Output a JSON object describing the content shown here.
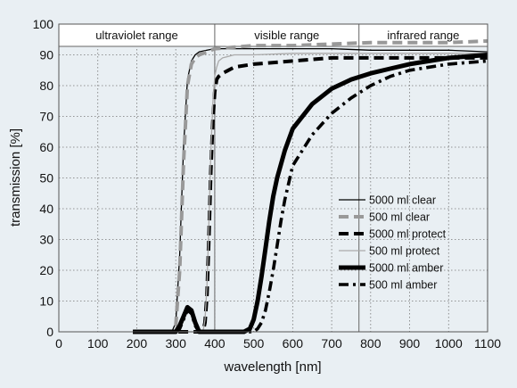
{
  "chart_data": {
    "type": "line",
    "title": "",
    "xlabel": "wavelength [nm]",
    "ylabel": "transmission [%]",
    "xlim": [
      0,
      1100
    ],
    "ylim": [
      0,
      100
    ],
    "x_ticks": [
      "0",
      "100",
      "200",
      "300",
      "400",
      "500",
      "600",
      "700",
      "800",
      "900",
      "1000",
      "1100"
    ],
    "y_ticks": [
      "0",
      "10",
      "20",
      "30",
      "40",
      "50",
      "60",
      "70",
      "80",
      "90",
      "100"
    ],
    "grid": true,
    "legend_position": "bottom-right",
    "range_bands": [
      {
        "label": "ultraviolet range",
        "from": 0,
        "to": 400
      },
      {
        "label": "visible range",
        "from": 400,
        "to": 770
      },
      {
        "label": "infrared range",
        "from": 770,
        "to": 1100
      }
    ],
    "series": [
      {
        "name": "5000 ml clear",
        "style": "thin-solid",
        "color": "#000000",
        "x": [
          190,
          200,
          250,
          290,
          300,
          310,
          320,
          330,
          340,
          350,
          360,
          380,
          400,
          450,
          500,
          600,
          700,
          800,
          900,
          1000,
          1100
        ],
        "y": [
          0,
          0,
          0,
          0,
          3,
          25,
          60,
          82,
          88,
          90,
          91,
          91.5,
          92,
          92,
          92,
          92,
          92,
          91.5,
          91.5,
          91.5,
          91
        ]
      },
      {
        "name": "500 ml clear",
        "style": "thick-dashed",
        "color": "#999999",
        "x": [
          190,
          200,
          250,
          290,
          300,
          310,
          320,
          330,
          340,
          350,
          360,
          380,
          400,
          450,
          500,
          600,
          700,
          800,
          900,
          1000,
          1100
        ],
        "y": [
          0,
          0,
          0,
          0,
          2,
          20,
          55,
          80,
          87,
          89,
          90,
          91,
          92,
          92.5,
          93,
          93,
          93.5,
          94,
          94,
          94,
          94.5
        ]
      },
      {
        "name": "5000 ml protect",
        "style": "thick-dashed",
        "color": "#000000",
        "x": [
          190,
          200,
          300,
          370,
          375,
          380,
          385,
          390,
          395,
          400,
          405,
          410,
          420,
          450,
          500,
          600,
          700,
          800,
          900,
          1000,
          1100
        ],
        "y": [
          0,
          0,
          0,
          0,
          3,
          12,
          30,
          52,
          68,
          78,
          82,
          83,
          84,
          86,
          87,
          88,
          89,
          89,
          89,
          89,
          89
        ]
      },
      {
        "name": "500 ml protect",
        "style": "thin-solid",
        "color": "#aaaaaa",
        "x": [
          190,
          200,
          300,
          370,
          375,
          380,
          385,
          390,
          395,
          400,
          405,
          410,
          420,
          450,
          500,
          600,
          700,
          800,
          900,
          1000,
          1100
        ],
        "y": [
          0,
          0,
          0,
          0,
          4,
          15,
          35,
          58,
          74,
          83,
          86,
          88,
          89,
          90,
          90,
          90.5,
          90.5,
          90.5,
          90.5,
          90.5,
          90.5
        ]
      },
      {
        "name": "5000 ml amber",
        "style": "thick-solid",
        "color": "#000000",
        "x": [
          190,
          250,
          300,
          310,
          320,
          330,
          340,
          350,
          360,
          370,
          400,
          450,
          475,
          490,
          500,
          510,
          520,
          530,
          540,
          550,
          560,
          580,
          600,
          650,
          700,
          750,
          800,
          850,
          900,
          950,
          1000,
          1050,
          1100
        ],
        "y": [
          0,
          0,
          0,
          2,
          5,
          8,
          7,
          3,
          0,
          0,
          0,
          0,
          0,
          1,
          4,
          10,
          18,
          27,
          36,
          44,
          50,
          59,
          66,
          74,
          79,
          82,
          84,
          85.5,
          87,
          88,
          89,
          89.5,
          90
        ]
      },
      {
        "name": "500 ml amber",
        "style": "thick-dashdot",
        "color": "#000000",
        "x": [
          190,
          250,
          300,
          310,
          320,
          330,
          340,
          350,
          360,
          370,
          400,
          450,
          490,
          500,
          510,
          520,
          530,
          540,
          550,
          560,
          570,
          580,
          600,
          650,
          700,
          750,
          800,
          850,
          900,
          950,
          1000,
          1050,
          1100
        ],
        "y": [
          0,
          0,
          0,
          1,
          4,
          7,
          6,
          2,
          0,
          0,
          0,
          0,
          0,
          0,
          1,
          3,
          7,
          13,
          20,
          28,
          36,
          43,
          54,
          64,
          71,
          76,
          80,
          83,
          85,
          86,
          87,
          87.5,
          88
        ]
      }
    ]
  }
}
